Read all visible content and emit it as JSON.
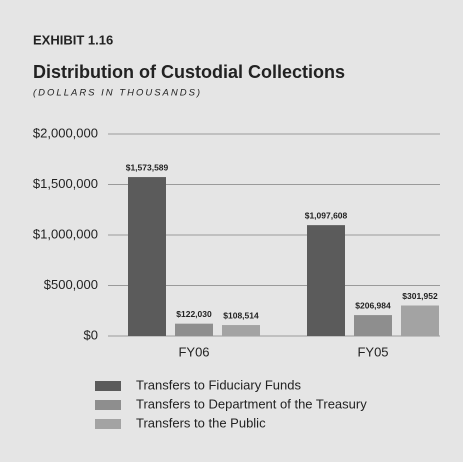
{
  "chart_data": {
    "type": "bar",
    "kicker": "EXHIBIT 1.16",
    "title": "Distribution of Custodial Collections",
    "subtitle": "(DOLLARS IN THOUSANDS)",
    "categories": [
      "FY06",
      "FY05"
    ],
    "series": [
      {
        "name": "Transfers to Fiduciary Funds",
        "color": "#5b5b5b",
        "values": [
          1573589,
          1097608
        ],
        "value_labels": [
          "$1,573,589",
          "$1,097,608"
        ]
      },
      {
        "name": "Transfers to Department of the Treasury",
        "color": "#8e8e8e",
        "values": [
          122030,
          206984
        ],
        "value_labels": [
          "$122,030",
          "$206,984"
        ]
      },
      {
        "name": "Transfers to the Public",
        "color": "#a3a3a3",
        "values": [
          108514,
          301952
        ],
        "value_labels": [
          "$108,514",
          "$301,952"
        ]
      }
    ],
    "ylim": [
      0,
      2000000
    ],
    "yticks": [
      {
        "value": 0,
        "label": "$0"
      },
      {
        "value": 500000,
        "label": "$500,000"
      },
      {
        "value": 1000000,
        "label": "$1,000,000"
      },
      {
        "value": 1500000,
        "label": "$1,500,000"
      },
      {
        "value": 2000000,
        "label": "$2,000,000"
      }
    ],
    "grid": true
  }
}
